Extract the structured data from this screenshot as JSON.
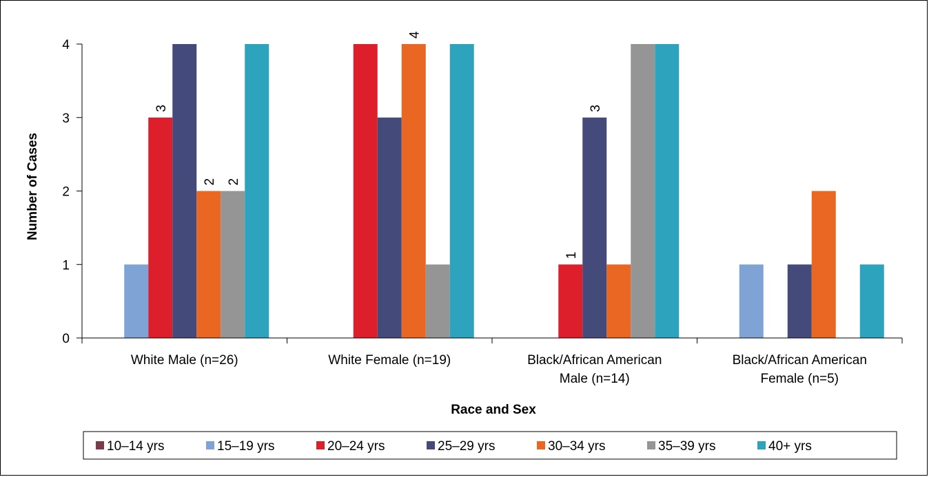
{
  "chart_data": {
    "type": "bar",
    "title": "",
    "xlabel": "Race and Sex",
    "ylabel": "Number of Cases",
    "ylim": [
      0,
      4
    ],
    "yticks": [
      0,
      1,
      2,
      3,
      4
    ],
    "grid": false,
    "legend_position": "bottom",
    "categories": [
      [
        "White Male (n=26)"
      ],
      [
        "White Female (n=19)"
      ],
      [
        "Black/African American",
        "Male (n=14)"
      ],
      [
        "Black/African American",
        "Female (n=5)"
      ]
    ],
    "series": [
      {
        "name": "10–14  yrs",
        "color": "#7b3b4a",
        "values": [
          0,
          0,
          0,
          0
        ]
      },
      {
        "name": "15–19  yrs",
        "color": "#7fa3d4",
        "values": [
          1,
          0,
          0,
          1
        ]
      },
      {
        "name": "20–24  yrs",
        "color": "#dd1f2b",
        "values": [
          3,
          4,
          1,
          0
        ]
      },
      {
        "name": "25–29  yrs",
        "color": "#444b7a",
        "values": [
          4,
          3,
          3,
          1
        ]
      },
      {
        "name": "30–34  yrs",
        "color": "#ea6623",
        "values": [
          2,
          4,
          1,
          2
        ]
      },
      {
        "name": "35–39  yrs",
        "color": "#959595",
        "values": [
          2,
          1,
          4,
          0
        ]
      },
      {
        "name": "40+  yrs",
        "color": "#2ea3be",
        "values": [
          4,
          4,
          4,
          1
        ]
      }
    ],
    "data_labels": [
      {
        "category": 0,
        "series": 2,
        "text": "3"
      },
      {
        "category": 0,
        "series": 4,
        "text": "2"
      },
      {
        "category": 0,
        "series": 5,
        "text": "2"
      },
      {
        "category": 1,
        "series": 4,
        "text": "4"
      },
      {
        "category": 2,
        "series": 2,
        "text": "1"
      },
      {
        "category": 2,
        "series": 3,
        "text": "3"
      }
    ]
  }
}
